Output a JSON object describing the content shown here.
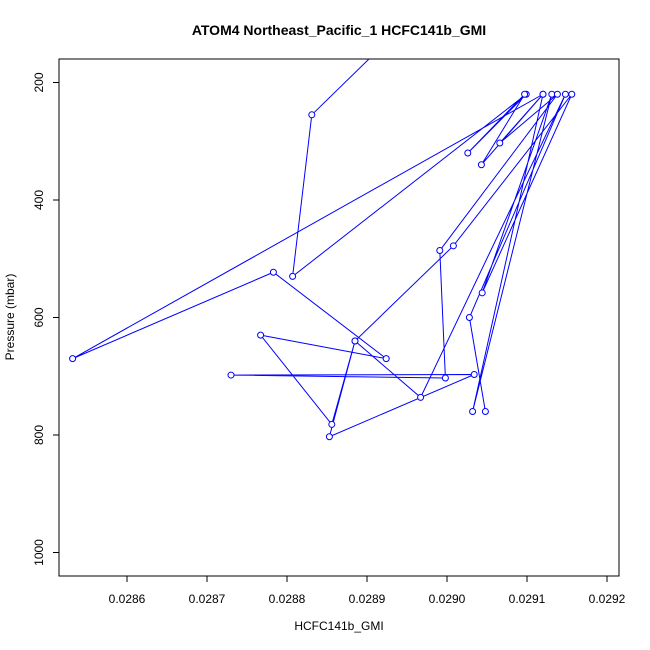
{
  "chart_data": {
    "type": "line",
    "title": "ATOM4 Northeast_Pacific_1 HCFC141b_GMI",
    "xlabel": "HCFC141b_GMI",
    "ylabel": "Pressure (mbar)",
    "xlim": [
      0.028515,
      0.029215
    ],
    "ylim": [
      1040,
      160
    ],
    "y_reversed": true,
    "x_ticks": [
      "0.0286",
      "0.0287",
      "0.0288",
      "0.0289",
      "0.0290",
      "0.0291",
      "0.0292"
    ],
    "y_ticks": [
      "200",
      "400",
      "600",
      "800",
      "1000"
    ],
    "series": [
      {
        "color": "#0000ff",
        "marker": "open-circle",
        "x": [
          0.02891,
          0.028831,
          0.028807,
          0.029099,
          0.029026,
          0.029097,
          0.029043,
          0.02912,
          0.029032,
          0.029131,
          0.029044,
          0.029156,
          0.029008,
          0.028885,
          0.028856,
          0.028767,
          0.028924,
          0.028783,
          0.028532,
          0.02912,
          0.029066,
          0.029138,
          0.028991,
          0.028998,
          0.02873,
          0.029034,
          0.028853,
          0.028885,
          0.028967,
          0.029148,
          0.029028,
          0.029048
        ],
        "y": [
          150,
          255,
          530,
          220,
          320,
          220,
          340,
          220,
          760,
          220,
          558,
          220,
          478,
          640,
          782,
          630,
          670,
          523,
          670,
          220,
          303,
          220,
          486,
          703,
          698,
          697,
          803,
          640,
          736,
          220,
          600,
          760
        ]
      }
    ]
  }
}
